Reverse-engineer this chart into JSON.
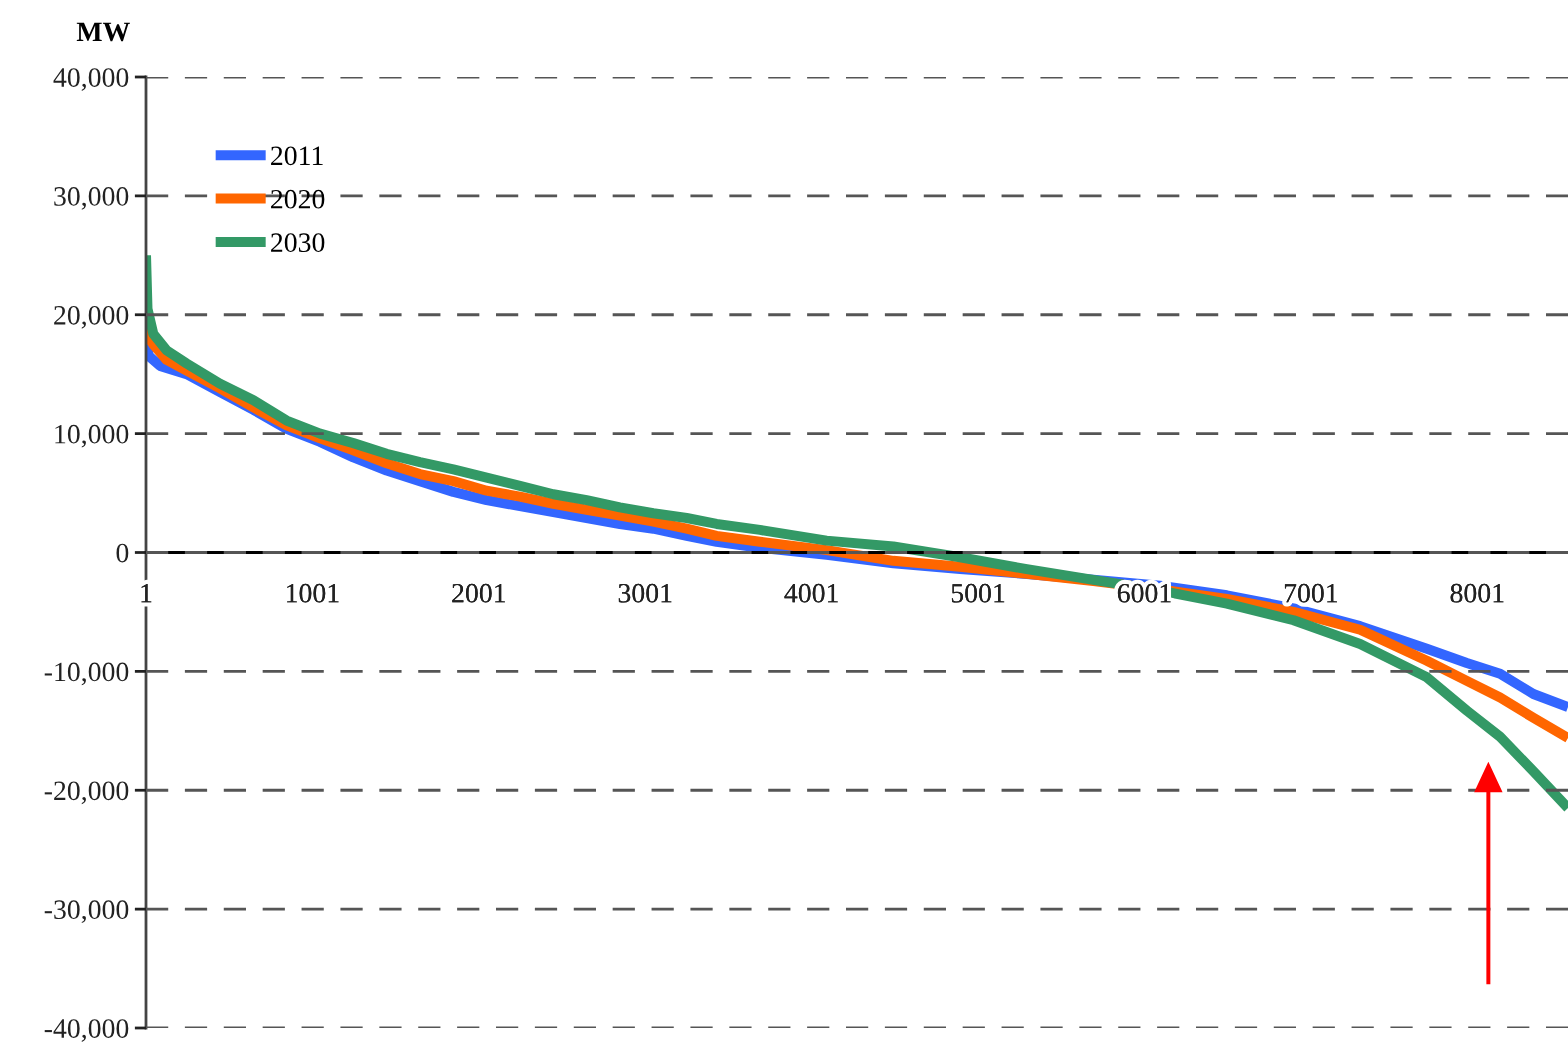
{
  "chart_data": {
    "type": "line",
    "ylabel": "MW",
    "xlim": [
      1,
      8546
    ],
    "xticks": [
      1,
      1001,
      2001,
      3001,
      4001,
      5001,
      6001,
      7001,
      8001
    ],
    "ylim": [
      -40000,
      40000
    ],
    "yticks": [
      {
        "value": -40000,
        "label": "-40,000"
      },
      {
        "value": -30000,
        "label": "-30,000"
      },
      {
        "value": -20000,
        "label": "-20,000"
      },
      {
        "value": -10000,
        "label": "-10,000"
      },
      0,
      {
        "value": 10000,
        "label": "10,000"
      },
      {
        "value": 20000,
        "label": "20,000"
      },
      {
        "value": 30000,
        "label": "30,000"
      },
      {
        "value": 40000,
        "label": "40,000"
      }
    ],
    "grid": "y",
    "legend": "top left",
    "series": [
      {
        "name": "2011",
        "color": "#3366ff",
        "x": [
          1,
          20,
          85,
          245,
          446,
          647,
          846,
          1047,
          1247,
          1447,
          1647,
          1848,
          2048,
          2248,
          2449,
          2649,
          2849,
          3050,
          3250,
          3430,
          3690,
          4091,
          4492,
          4893,
          5294,
          5694,
          6095,
          6496,
          6897,
          7297,
          7698,
          7938,
          8138,
          8338,
          8546
        ],
        "values": [
          17500,
          16500,
          15700,
          15000,
          13500,
          12000,
          10400,
          9300,
          8000,
          6900,
          6000,
          5100,
          4400,
          3900,
          3400,
          2900,
          2400,
          2000,
          1400,
          900,
          400,
          -200,
          -900,
          -1400,
          -1800,
          -2300,
          -2800,
          -3600,
          -4700,
          -6200,
          -8100,
          -9300,
          -10200,
          -11900,
          -13000
        ]
      },
      {
        "name": "2020",
        "color": "#ff6600",
        "x": [
          1,
          20,
          45,
          125,
          245,
          446,
          647,
          846,
          1047,
          1247,
          1447,
          1647,
          1848,
          2048,
          2248,
          2449,
          2649,
          2849,
          3050,
          3250,
          3430,
          3690,
          4091,
          4492,
          4893,
          5294,
          5694,
          6095,
          6496,
          6897,
          7297,
          7698,
          7938,
          8138,
          8338,
          8546
        ],
        "values": [
          19500,
          18000,
          17500,
          16200,
          15300,
          13800,
          12200,
          10700,
          9600,
          8600,
          7500,
          6600,
          6000,
          5200,
          4700,
          4100,
          3600,
          3100,
          2600,
          2000,
          1400,
          900,
          200,
          -700,
          -1200,
          -1800,
          -2400,
          -3100,
          -3900,
          -5000,
          -6500,
          -9100,
          -10800,
          -12200,
          -13900,
          -15600
        ]
      },
      {
        "name": "2030",
        "color": "#339966",
        "x": [
          1,
          10,
          45,
          125,
          245,
          446,
          647,
          846,
          1047,
          1247,
          1447,
          1647,
          1848,
          2048,
          2248,
          2449,
          2649,
          2849,
          3050,
          3250,
          3430,
          3690,
          4091,
          4492,
          4893,
          5294,
          5694,
          6095,
          6496,
          6897,
          7297,
          7698,
          7938,
          8138,
          8338,
          8546
        ],
        "values": [
          25000,
          20500,
          18400,
          17000,
          15900,
          14200,
          12800,
          11100,
          10000,
          9200,
          8300,
          7600,
          7000,
          6300,
          5600,
          4900,
          4400,
          3800,
          3300,
          2900,
          2400,
          1900,
          1000,
          500,
          -400,
          -1400,
          -2300,
          -3200,
          -4300,
          -5700,
          -7700,
          -10500,
          -13300,
          -15500,
          -18400,
          -21500
        ]
      }
    ]
  }
}
